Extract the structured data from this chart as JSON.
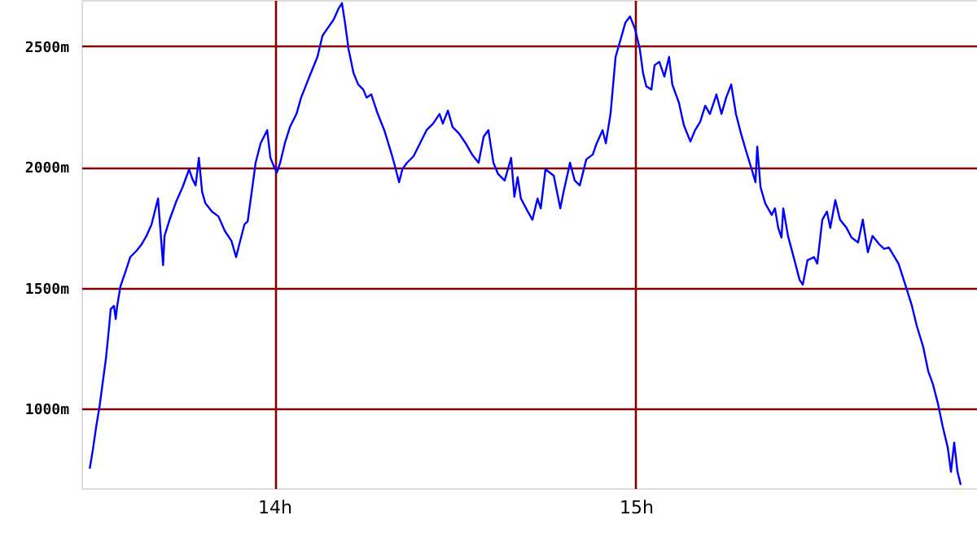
{
  "chart_data": {
    "type": "line",
    "xlim": [
      13.466,
      15.944
    ],
    "ylim": [
      670,
      2692
    ],
    "xticks": [
      {
        "value": 14,
        "label": "14h"
      },
      {
        "value": 15,
        "label": "15h"
      }
    ],
    "yticks": [
      {
        "value": 1000,
        "label": "1000m"
      },
      {
        "value": 1500,
        "label": "1500m"
      },
      {
        "value": 2000,
        "label": "2000m"
      },
      {
        "value": 2500,
        "label": "2500m"
      }
    ],
    "grid": true,
    "marker": "none",
    "line_style": "solid",
    "series": [
      {
        "color": "#0000ff",
        "x": [
          13.489,
          13.498,
          13.507,
          13.516,
          13.525,
          13.534,
          13.543,
          13.547,
          13.556,
          13.561,
          13.565,
          13.574,
          13.588,
          13.601,
          13.619,
          13.633,
          13.646,
          13.66,
          13.669,
          13.678,
          13.692,
          13.696,
          13.71,
          13.728,
          13.746,
          13.764,
          13.773,
          13.782,
          13.791,
          13.8,
          13.809,
          13.827,
          13.845,
          13.863,
          13.881,
          13.894,
          13.903,
          13.917,
          13.926,
          13.939,
          13.948,
          13.962,
          13.98,
          13.989,
          13.998,
          14.007,
          14.016,
          14.029,
          14.043,
          14.061,
          14.074,
          14.097,
          14.119,
          14.133,
          14.164,
          14.178,
          14.187,
          14.196,
          14.205,
          14.219,
          14.232,
          14.246,
          14.255,
          14.268,
          14.286,
          14.304,
          14.322,
          14.331,
          14.345,
          14.354,
          14.367,
          14.385,
          14.403,
          14.421,
          14.439,
          14.457,
          14.466,
          14.48,
          14.493,
          14.511,
          14.529,
          14.547,
          14.565,
          14.579,
          14.592,
          14.606,
          14.619,
          14.637,
          14.655,
          14.664,
          14.673,
          14.682,
          14.701,
          14.714,
          14.728,
          14.737,
          14.75,
          14.773,
          14.791,
          14.8,
          14.818,
          14.831,
          14.845,
          14.863,
          14.881,
          14.89,
          14.908,
          14.917,
          14.93,
          14.944,
          14.957,
          14.971,
          14.984,
          14.998,
          15.011,
          15.02,
          15.029,
          15.043,
          15.052,
          15.065,
          15.079,
          15.092,
          15.101,
          15.119,
          15.133,
          15.151,
          15.164,
          15.178,
          15.192,
          15.205,
          15.223,
          15.237,
          15.25,
          15.264,
          15.277,
          15.291,
          15.304,
          15.322,
          15.331,
          15.336,
          15.345,
          15.358,
          15.376,
          15.385,
          15.394,
          15.403,
          15.408,
          15.421,
          15.439,
          15.453,
          15.462,
          15.475,
          15.493,
          15.502,
          15.516,
          15.529,
          15.538,
          15.552,
          15.565,
          15.583,
          15.597,
          15.615,
          15.628,
          15.642,
          15.655,
          15.673,
          15.687,
          15.7,
          15.727,
          15.75,
          15.764,
          15.777,
          15.795,
          15.809,
          15.822,
          15.836,
          15.849,
          15.863,
          15.872,
          15.881,
          15.89,
          15.899
        ],
        "values": [
          751,
          832,
          926,
          1007,
          1108,
          1209,
          1344,
          1412,
          1425,
          1371,
          1425,
          1506,
          1567,
          1627,
          1654,
          1681,
          1715,
          1762,
          1816,
          1870,
          1594,
          1715,
          1782,
          1856,
          1917,
          1991,
          1951,
          1924,
          2038,
          1897,
          1850,
          1816,
          1796,
          1735,
          1695,
          1627,
          1681,
          1762,
          1775,
          1917,
          2018,
          2099,
          2153,
          2038,
          2005,
          1978,
          2018,
          2099,
          2166,
          2220,
          2288,
          2375,
          2456,
          2544,
          2611,
          2658,
          2679,
          2591,
          2490,
          2389,
          2342,
          2321,
          2288,
          2301,
          2220,
          2153,
          2065,
          2018,
          1937,
          1991,
          2018,
          2045,
          2099,
          2153,
          2180,
          2220,
          2180,
          2234,
          2166,
          2139,
          2099,
          2052,
          2018,
          2126,
          2153,
          2018,
          1971,
          1944,
          2038,
          1877,
          1958,
          1870,
          1816,
          1782,
          1870,
          1829,
          1991,
          1964,
          1829,
          1897,
          2018,
          1944,
          1924,
          2032,
          2052,
          2092,
          2153,
          2099,
          2220,
          2456,
          2524,
          2598,
          2624,
          2571,
          2490,
          2389,
          2335,
          2321,
          2422,
          2436,
          2375,
          2456,
          2342,
          2268,
          2173,
          2106,
          2153,
          2187,
          2254,
          2220,
          2301,
          2220,
          2288,
          2342,
          2220,
          2139,
          2072,
          1984,
          1937,
          2085,
          1917,
          1850,
          1802,
          1829,
          1748,
          1708,
          1829,
          1715,
          1614,
          1533,
          1513,
          1614,
          1627,
          1600,
          1782,
          1816,
          1748,
          1863,
          1782,
          1748,
          1708,
          1688,
          1782,
          1647,
          1715,
          1681,
          1661,
          1667,
          1600,
          1492,
          1425,
          1344,
          1256,
          1155,
          1101,
          1020,
          926,
          839,
          738,
          859,
          738,
          684
        ]
      }
    ]
  }
}
